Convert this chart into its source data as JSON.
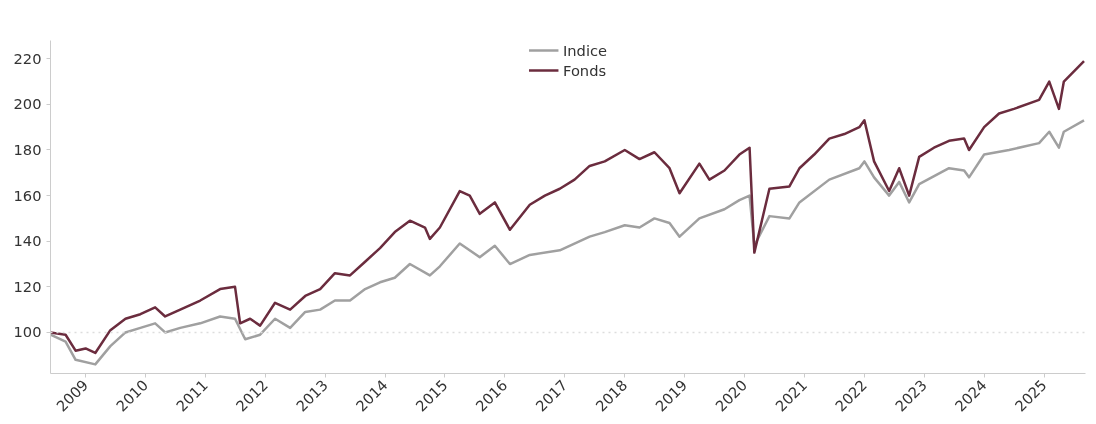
{
  "chart_data": {
    "type": "line",
    "xlim": [
      "2008-06",
      "2025-09-10"
    ],
    "ylim": [
      82,
      228
    ],
    "xticks": [
      "2009",
      "2010",
      "2011",
      "2012",
      "2013",
      "2014",
      "2015",
      "2016",
      "2017",
      "2018",
      "2019",
      "2020",
      "2021",
      "2022",
      "2023",
      "2024",
      "2025"
    ],
    "yticks": [
      100,
      120,
      140,
      160,
      180,
      200,
      220
    ],
    "grid": false,
    "legend": "top",
    "marker": "none",
    "line_style": "solid",
    "ref_lines": [
      {
        "axis": "y",
        "value": 100,
        "color": "#dddddd",
        "line_style": "dotted"
      }
    ],
    "series": [
      {
        "name": "Indice",
        "color": "#a0a0a0",
        "x": [
          "2008-06",
          "2008-09",
          "2008-11",
          "2009-03",
          "2009-06",
          "2009-09",
          "2009-12",
          "2010-03",
          "2010-05",
          "2010-08",
          "2010-12",
          "2011-04",
          "2011-07",
          "2011-09",
          "2011-12",
          "2012-03",
          "2012-06",
          "2012-09",
          "2012-12",
          "2013-03",
          "2013-06",
          "2013-09",
          "2013-12",
          "2014-03",
          "2014-06",
          "2014-10",
          "2014-12",
          "2015-04",
          "2015-08",
          "2015-11",
          "2016-02",
          "2016-06",
          "2016-12",
          "2017-06",
          "2017-09",
          "2018-01",
          "2018-04",
          "2018-07",
          "2018-10",
          "2018-12",
          "2019-04",
          "2019-09",
          "2019-12",
          "2020-02",
          "2020-03",
          "2020-06",
          "2020-10",
          "2020-12",
          "2021-06",
          "2021-12",
          "2022-01",
          "2022-03",
          "2022-06",
          "2022-08",
          "2022-10",
          "2022-12",
          "2023-06",
          "2023-09",
          "2023-10",
          "2024-01",
          "2024-06",
          "2024-12",
          "2025-02",
          "2025-04",
          "2025-05",
          "2025-09"
        ],
        "values": [
          99,
          96,
          88,
          86,
          94,
          100,
          102,
          104,
          100,
          102,
          104,
          107,
          106,
          97,
          99,
          106,
          102,
          109,
          110,
          114,
          114,
          119,
          122,
          124,
          130,
          125,
          129,
          139,
          133,
          138,
          130,
          134,
          136,
          142,
          144,
          147,
          146,
          150,
          148,
          142,
          150,
          154,
          158,
          160,
          138,
          151,
          150,
          157,
          167,
          172,
          175,
          168,
          160,
          166,
          157,
          165,
          172,
          171,
          168,
          178,
          180,
          183,
          188,
          181,
          188,
          193
        ]
      },
      {
        "name": "Fonds",
        "color": "#6b2c3e",
        "x": [
          "2008-06",
          "2008-09",
          "2008-11",
          "2009-01",
          "2009-03",
          "2009-06",
          "2009-09",
          "2009-12",
          "2010-03",
          "2010-05",
          "2010-08",
          "2010-12",
          "2011-04",
          "2011-07",
          "2011-08",
          "2011-10",
          "2011-12",
          "2012-03",
          "2012-06",
          "2012-09",
          "2012-12",
          "2013-03",
          "2013-06",
          "2013-09",
          "2013-12",
          "2014-03",
          "2014-06",
          "2014-09",
          "2014-10",
          "2014-12",
          "2015-04",
          "2015-06",
          "2015-08",
          "2015-11",
          "2016-02",
          "2016-06",
          "2016-09",
          "2016-12",
          "2017-03",
          "2017-06",
          "2017-09",
          "2018-01",
          "2018-04",
          "2018-07",
          "2018-10",
          "2018-12",
          "2019-04",
          "2019-06",
          "2019-09",
          "2019-12",
          "2020-02",
          "2020-03",
          "2020-06",
          "2020-10",
          "2020-12",
          "2021-03",
          "2021-06",
          "2021-09",
          "2021-12",
          "2022-01",
          "2022-03",
          "2022-06",
          "2022-08",
          "2022-10",
          "2022-12",
          "2023-03",
          "2023-06",
          "2023-09",
          "2023-10",
          "2024-01",
          "2024-04",
          "2024-07",
          "2024-12",
          "2025-02",
          "2025-04",
          "2025-05",
          "2025-09"
        ],
        "values": [
          100,
          99,
          92,
          93,
          91,
          101,
          106,
          108,
          111,
          107,
          110,
          114,
          119,
          120,
          104,
          106,
          103,
          113,
          110,
          116,
          119,
          126,
          125,
          131,
          137,
          144,
          149,
          146,
          141,
          146,
          162,
          160,
          152,
          157,
          145,
          156,
          160,
          163,
          167,
          173,
          175,
          180,
          176,
          179,
          172,
          161,
          174,
          167,
          171,
          178,
          181,
          135,
          163,
          164,
          172,
          178,
          185,
          187,
          190,
          193,
          175,
          162,
          172,
          160,
          177,
          181,
          184,
          185,
          180,
          190,
          196,
          198,
          202,
          210,
          198,
          210,
          219
        ]
      }
    ]
  }
}
